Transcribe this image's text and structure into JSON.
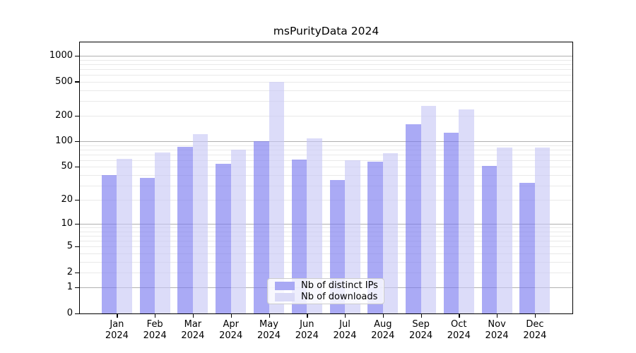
{
  "title": "msPurityData 2024",
  "colors": {
    "background": "#ffffff",
    "axis": "#000000",
    "grid_major": "#b0b0b0",
    "grid_minor": "#e9e9e9",
    "series_distinct_ips": "rgba(118,118,239,0.62)",
    "series_downloads": "rgba(199,199,245,0.62)",
    "swatch_distinct_ips": "#a9a9f4",
    "swatch_downloads": "#dadaf7"
  },
  "legend": {
    "items": [
      {
        "label": "Nb of distinct IPs",
        "swatch_color": "#a9a9f4"
      },
      {
        "label": "Nb of downloads",
        "swatch_color": "#dadaf7"
      }
    ]
  },
  "chart_data": {
    "type": "bar",
    "title": "msPurityData 2024",
    "categories": [
      "Jan",
      "Feb",
      "Mar",
      "Apr",
      "May",
      "Jun",
      "Jul",
      "Aug",
      "Sep",
      "Oct",
      "Nov",
      "Dec"
    ],
    "year_label": "2024",
    "series": [
      {
        "name": "Nb of distinct IPs",
        "color": "rgba(118,118,239,0.62)",
        "values": [
          40,
          37,
          86,
          55,
          100,
          61,
          35,
          58,
          158,
          127,
          51,
          32
        ]
      },
      {
        "name": "Nb of downloads",
        "color": "rgba(199,199,245,0.62)",
        "values": [
          62,
          74,
          122,
          80,
          500,
          108,
          60,
          73,
          260,
          237,
          84,
          84
        ]
      }
    ],
    "xlabel": "",
    "ylabel": "",
    "yscale": "log1p",
    "ylim": [
      0,
      1440
    ],
    "y_ticks_labeled": [
      0,
      1,
      2,
      5,
      10,
      20,
      50,
      100,
      200,
      500,
      1000
    ],
    "y_ticks_major_grid": [
      1,
      10,
      100,
      1000
    ],
    "grid": true,
    "legend_position": "bottom-center"
  }
}
